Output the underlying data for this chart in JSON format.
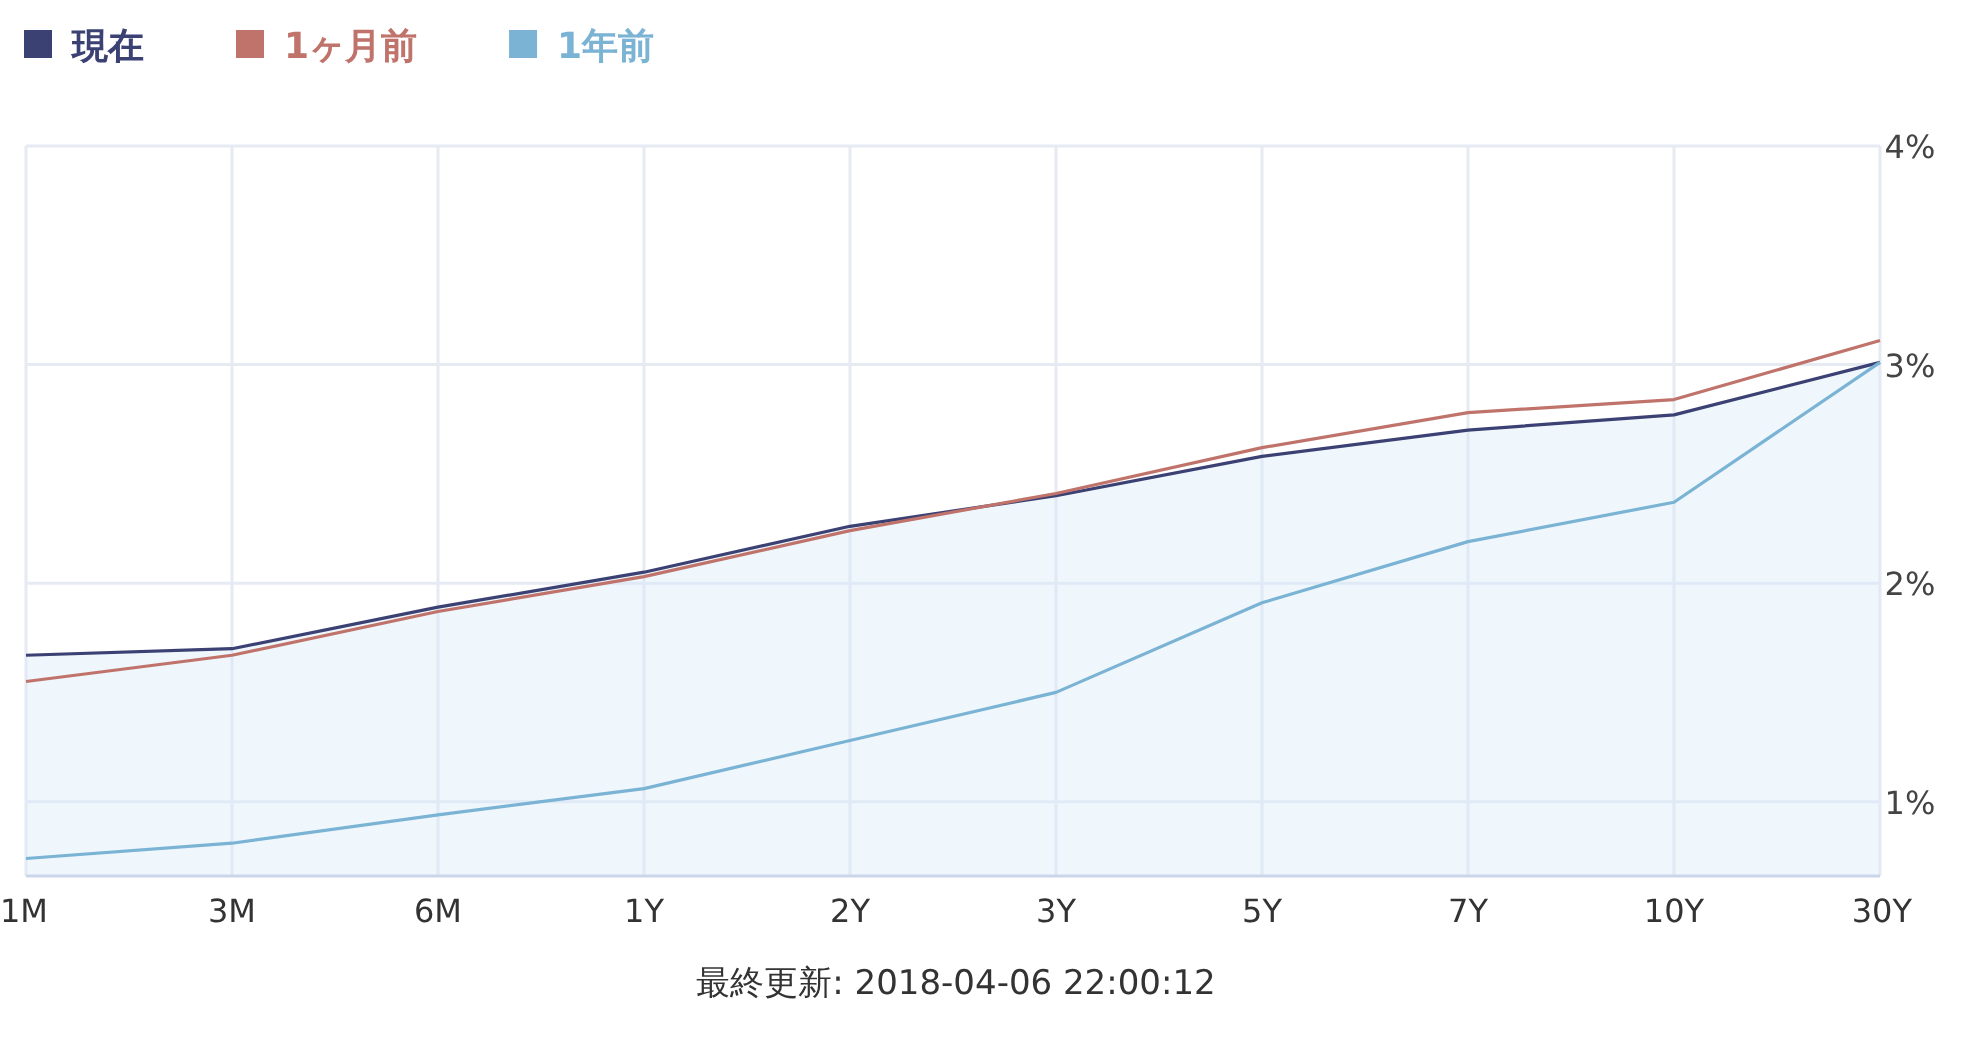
{
  "chart_data": {
    "type": "line",
    "categories": [
      "1M",
      "3M",
      "6M",
      "1Y",
      "2Y",
      "3Y",
      "5Y",
      "7Y",
      "10Y",
      "30Y"
    ],
    "series": [
      {
        "name": "現在",
        "type": "area",
        "color": "#3b4173",
        "values": [
          1.67,
          1.7,
          1.89,
          2.05,
          2.26,
          2.4,
          2.58,
          2.7,
          2.77,
          3.01
        ]
      },
      {
        "name": "1ヶ月前",
        "color": "#c0736b",
        "values": [
          1.55,
          1.67,
          1.87,
          2.03,
          2.24,
          2.41,
          2.62,
          2.78,
          2.84,
          3.11
        ]
      },
      {
        "name": "1年前",
        "color": "#7ab3d4",
        "values": [
          0.74,
          0.81,
          0.94,
          1.06,
          1.28,
          1.5,
          1.91,
          2.19,
          2.37,
          3.01
        ]
      }
    ],
    "ylim": [
      0.66,
      4
    ],
    "yticks": [
      {
        "value": 1,
        "label": "1%"
      },
      {
        "value": 2,
        "label": "2%"
      },
      {
        "value": 3,
        "label": "3%"
      },
      {
        "value": 4,
        "label": "4%"
      }
    ],
    "grid": true,
    "legend": "top left",
    "marker": "none",
    "line_style": "solid",
    "annotations": [
      "最終更新: 2018-04-06 22:00:12"
    ]
  }
}
